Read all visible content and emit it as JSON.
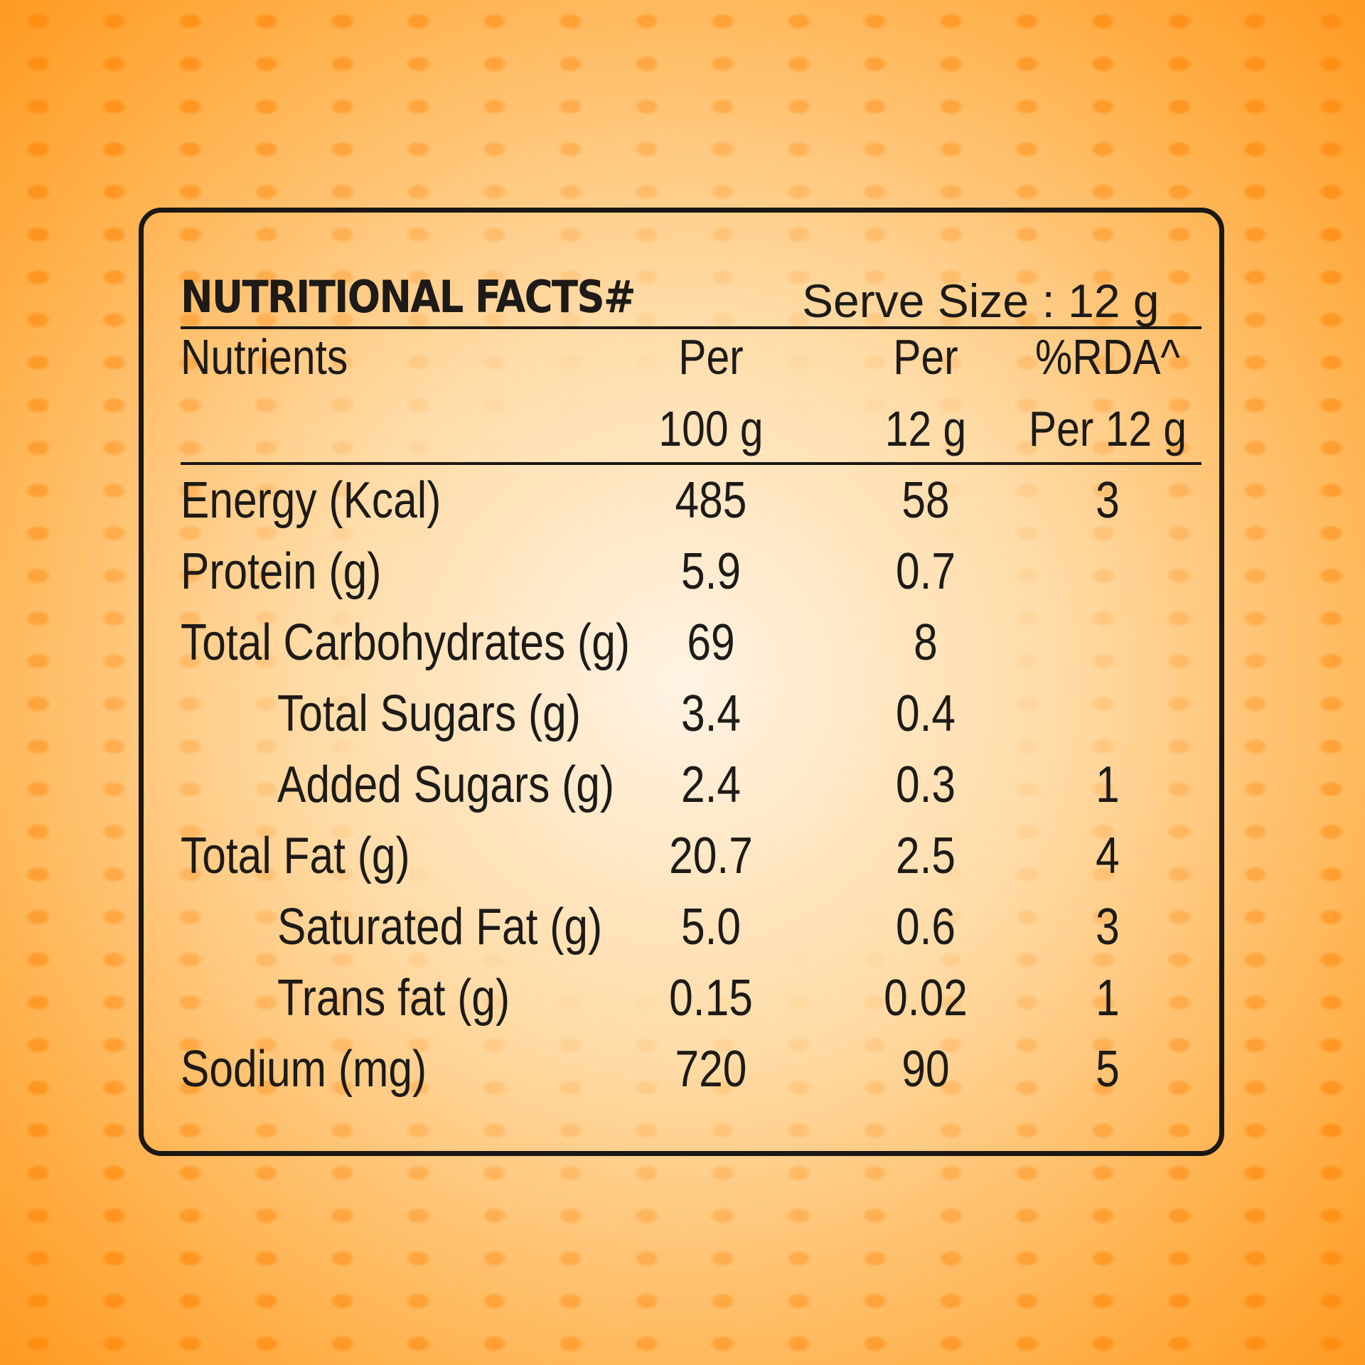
{
  "title": "NUTRITIONAL FACTS#",
  "serve_size": "Serve Size : 12 g",
  "columns": {
    "nutrients": "Nutrients",
    "per100_line1": "Per",
    "per100_line2": "100 g",
    "per12_line1": "Per",
    "per12_line2": "12 g",
    "rda_line1": "%RDA^",
    "rda_line2": "Per 12 g"
  },
  "rows": [
    {
      "name": "Energy (Kcal)",
      "per100": "485",
      "per12": "58",
      "rda": "3"
    },
    {
      "name": "Protein (g)",
      "per100": "5.9",
      "per12": "0.7",
      "rda": ""
    },
    {
      "name": "Total Carbohydrates (g)",
      "per100": "69",
      "per12": "8",
      "rda": ""
    },
    {
      "name": "Total Sugars (g)",
      "per100": "3.4",
      "per12": "0.4",
      "rda": ""
    },
    {
      "name": "Added Sugars (g)",
      "per100": "2.4",
      "per12": "0.3",
      "rda": "1"
    },
    {
      "name": "Total Fat (g)",
      "per100": "20.7",
      "per12": "2.5",
      "rda": "4"
    },
    {
      "name": "Saturated Fat (g)",
      "per100": "5.0",
      "per12": "0.6",
      "rda": "3"
    },
    {
      "name": "Trans fat (g)",
      "per100": "0.15",
      "per12": "0.02",
      "rda": "1"
    },
    {
      "name": "Sodium (mg)",
      "per100": "720",
      "per12": "90",
      "rda": "5"
    }
  ]
}
